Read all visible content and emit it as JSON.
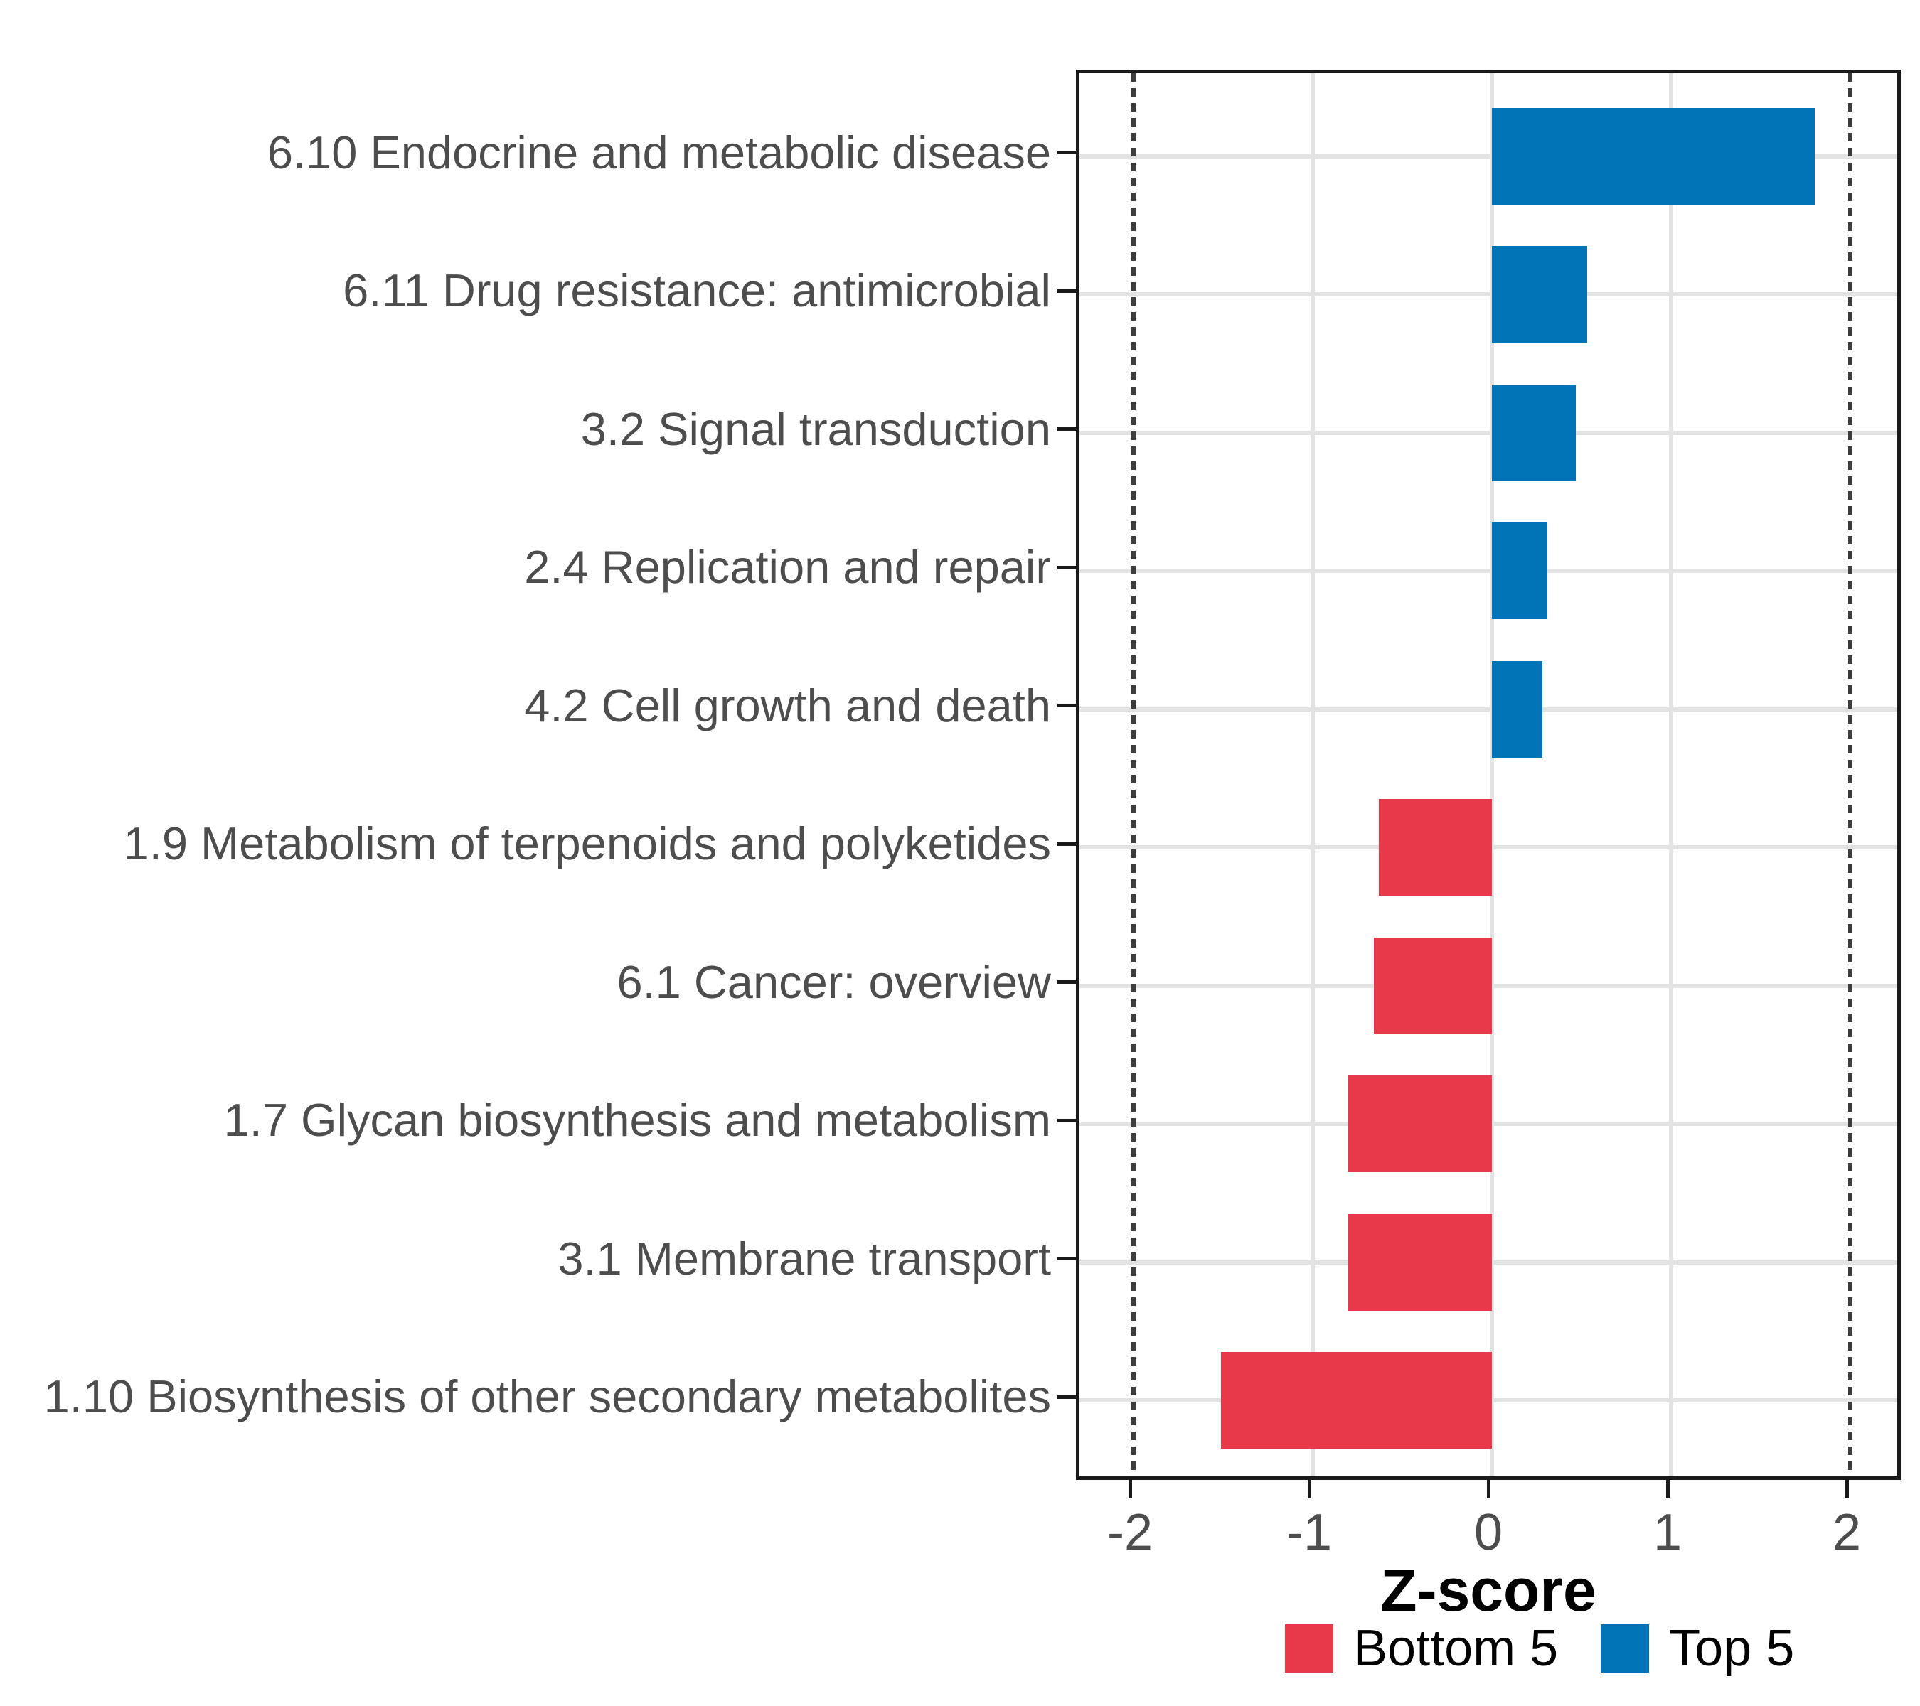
{
  "chart_data": {
    "type": "bar",
    "orientation": "horizontal",
    "title": "",
    "xlabel": "Z-score",
    "ylabel": "",
    "categories": [
      "6.10 Endocrine and metabolic disease",
      "6.11 Drug resistance: antimicrobial",
      "3.2 Signal transduction",
      "2.4 Replication and repair",
      "4.2 Cell growth and death",
      "1.9 Metabolism of terpenoids and polyketides",
      "6.1 Cancer: overview",
      "1.7 Glycan biosynthesis and metabolism",
      "3.1 Membrane transport",
      "1.10 Biosynthesis of other secondary metabolites"
    ],
    "values": [
      1.8,
      0.53,
      0.47,
      0.31,
      0.28,
      -0.63,
      -0.66,
      -0.8,
      -0.8,
      -1.51
    ],
    "point_groups": [
      "Top 5",
      "Top 5",
      "Top 5",
      "Top 5",
      "Top 5",
      "Bottom 5",
      "Bottom 5",
      "Bottom 5",
      "Bottom 5",
      "Bottom 5"
    ],
    "legend": [
      {
        "label": "Bottom 5",
        "color": "#E8394A"
      },
      {
        "label": "Top 5",
        "color": "#0074B7"
      }
    ],
    "legend_position": "bottom",
    "x_ticks": [
      -2,
      -1,
      0,
      1,
      2
    ],
    "x_tick_labels": [
      "-2",
      "-1",
      "0",
      "1",
      "2"
    ],
    "xlim": [
      -2.3,
      2.3
    ],
    "grid_x": [
      -1,
      0,
      1
    ],
    "reference_lines": [
      -2,
      2
    ],
    "grid": "on",
    "colors": {
      "bottom5": "#E8394A",
      "top5": "#0074B7",
      "grid": "#E3E3E3",
      "reference_line": "#3D3D3D",
      "axis_text": "#4D4D4D",
      "axis_title": "#000000",
      "panel_border": "#1A1A1A",
      "background": "#FFFFFF"
    }
  }
}
